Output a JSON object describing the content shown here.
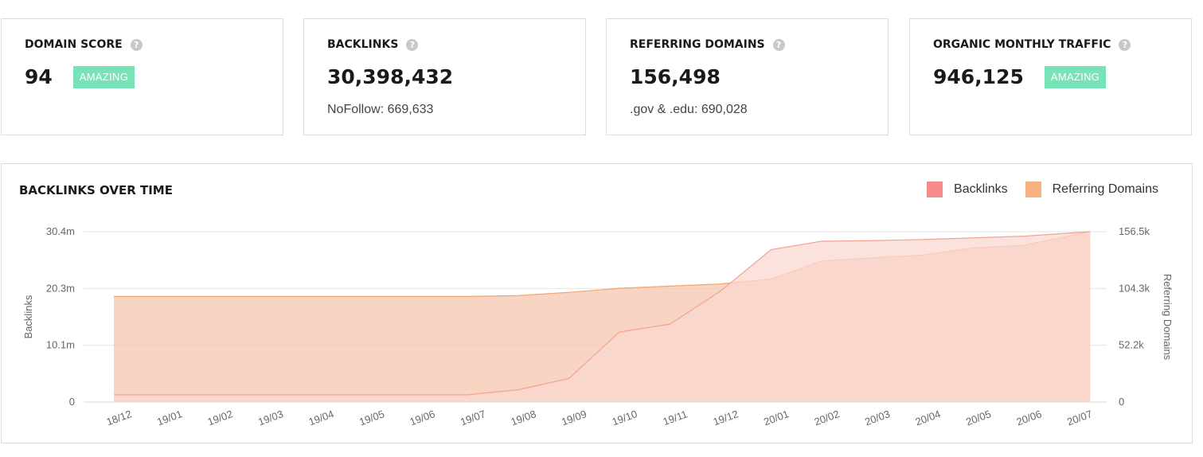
{
  "cards": [
    {
      "title": "DOMAIN SCORE",
      "value": "94",
      "badge": "AMAZING",
      "sub": ""
    },
    {
      "title": "BACKLINKS",
      "value": "30,398,432",
      "badge": "",
      "sub": "NoFollow: 669,633"
    },
    {
      "title": "REFERRING DOMAINS",
      "value": "156,498",
      "badge": "",
      "sub": ".gov & .edu: 690,028"
    },
    {
      "title": "ORGANIC MONTHLY TRAFFIC",
      "value": "946,125",
      "badge": "AMAZING",
      "sub": ""
    }
  ],
  "help_glyph": "?",
  "colors": {
    "badge": "#79e3b8",
    "backlinks": "#f68b8b",
    "referring_domains": "#f7b07f"
  },
  "chart_title": "BACKLINKS OVER TIME",
  "chart_data": {
    "type": "area",
    "title": "BACKLINKS OVER TIME",
    "legend_position": "top-right",
    "grid": true,
    "x_ticks": [
      "18/12",
      "19/01",
      "19/02",
      "19/03",
      "19/04",
      "19/05",
      "19/06",
      "19/07",
      "19/08",
      "19/09",
      "19/10",
      "19/11",
      "19/12",
      "20/01",
      "20/02",
      "20/03",
      "20/04",
      "20/05",
      "20/06",
      "20/07"
    ],
    "y_left": {
      "label": "Backlinks",
      "ticks": [
        "0",
        "10.1m",
        "20.3m",
        "30.4m"
      ],
      "range": [
        0,
        30400000
      ]
    },
    "y_right": {
      "label": "Referring Domains",
      "ticks": [
        "0",
        "52.2k",
        "104.3k",
        "156.5k"
      ],
      "range": [
        0,
        156500
      ]
    },
    "series": [
      {
        "name": "Backlinks",
        "axis": "left",
        "points": [
          [
            "18/12",
            1300000
          ],
          [
            "19/01",
            1300000
          ],
          [
            "19/02",
            1300000
          ],
          [
            "19/03",
            1300000
          ],
          [
            "19/04",
            1300000
          ],
          [
            "19/05",
            1300000
          ],
          [
            "19/06",
            1300000
          ],
          [
            "19/07",
            1300000
          ],
          [
            "19/08",
            2200000
          ],
          [
            "19/09",
            4200000
          ],
          [
            "19/10",
            12500000
          ],
          [
            "19/11",
            13900000
          ],
          [
            "19/12",
            19800000
          ],
          [
            "20/01",
            27200000
          ],
          [
            "20/02",
            28700000
          ],
          [
            "20/03",
            28800000
          ],
          [
            "20/04",
            29000000
          ],
          [
            "20/05",
            29300000
          ],
          [
            "20/06",
            29600000
          ],
          [
            "20/07",
            30400000
          ]
        ]
      },
      {
        "name": "Referring Domains",
        "axis": "right",
        "points": [
          [
            "18/12",
            97000
          ],
          [
            "19/01",
            97000
          ],
          [
            "19/02",
            97000
          ],
          [
            "19/03",
            97000
          ],
          [
            "19/04",
            97000
          ],
          [
            "19/05",
            97000
          ],
          [
            "19/06",
            97000
          ],
          [
            "19/07",
            97000
          ],
          [
            "19/08",
            97800
          ],
          [
            "19/09",
            100800
          ],
          [
            "19/10",
            104500
          ],
          [
            "19/11",
            106500
          ],
          [
            "19/12",
            108500
          ],
          [
            "20/01",
            113000
          ],
          [
            "20/02",
            129500
          ],
          [
            "20/03",
            132500
          ],
          [
            "20/04",
            135000
          ],
          [
            "20/05",
            141500
          ],
          [
            "20/06",
            144000
          ],
          [
            "20/07",
            156500
          ]
        ]
      }
    ]
  }
}
